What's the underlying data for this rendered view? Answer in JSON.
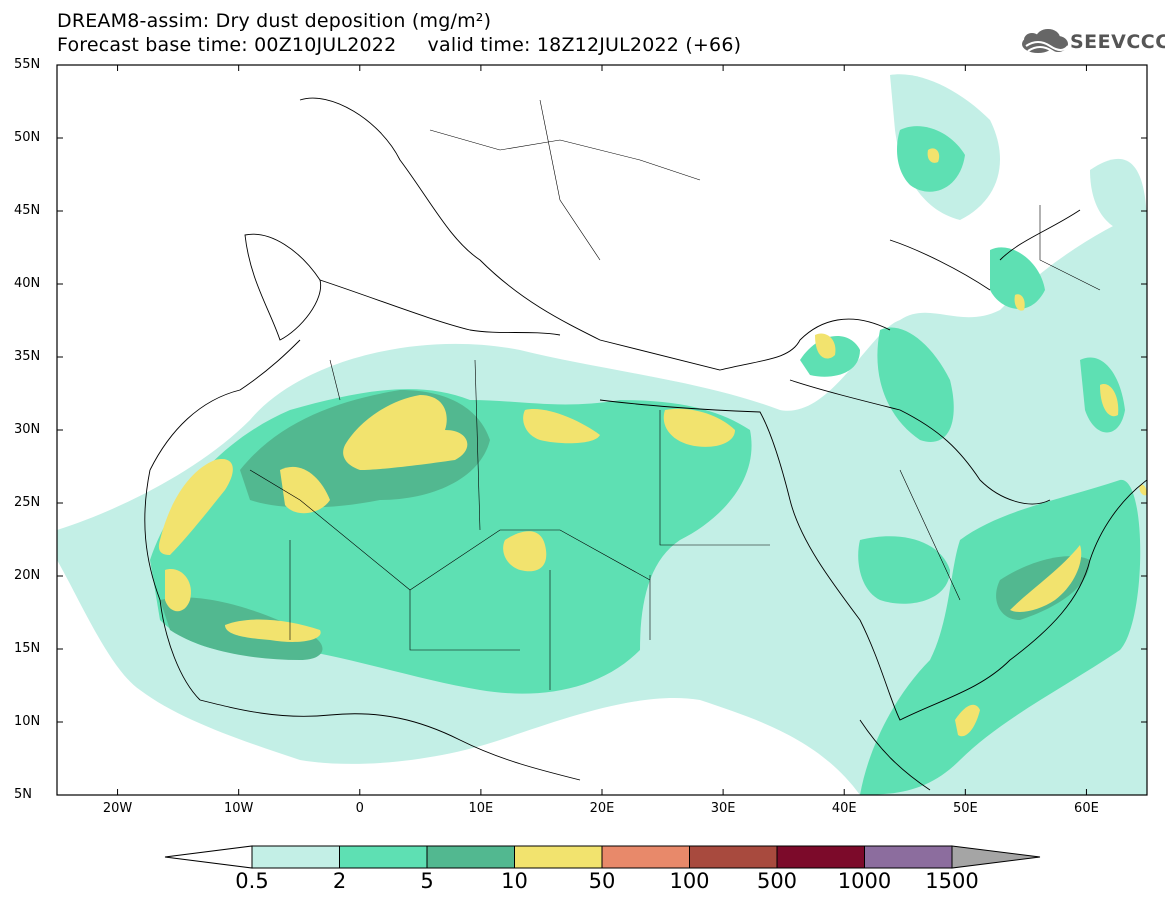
{
  "title": {
    "line1": "DREAM8-assim: Dry dust deposition (mg/m²)",
    "line2": "Forecast base time: 00Z10JUL2022     valid time: 18Z12JUL2022 (+66)"
  },
  "logo": {
    "text": "SEEVCCC",
    "icon": "cloud-logo-icon"
  },
  "map": {
    "lat_labels": [
      "55N",
      "50N",
      "45N",
      "40N",
      "35N",
      "30N",
      "25N",
      "20N",
      "15N",
      "10N",
      "5N"
    ],
    "lon_labels": [
      "20W",
      "10W",
      "0",
      "10E",
      "20E",
      "30E",
      "40E",
      "50E",
      "60E"
    ],
    "lat_range": [
      5,
      55
    ],
    "lon_range": [
      -25,
      65
    ]
  },
  "legend": {
    "labels": [
      "0.5",
      "2",
      "5",
      "10",
      "50",
      "100",
      "500",
      "1000",
      "1500"
    ],
    "colors": [
      "#c3efe6",
      "#5ee0b3",
      "#52b890",
      "#f2e36e",
      "#e8896a",
      "#a84a3e",
      "#7c0a2a",
      "#8c6d9e",
      "#a5a5a5"
    ]
  }
}
